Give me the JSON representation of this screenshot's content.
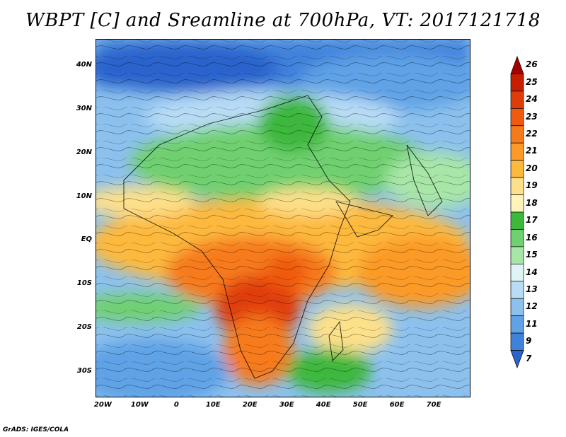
{
  "title": "WBPT [C] and Sreamline at 700hPa, VT: 2017121718",
  "credit": "GrADS: IGES/COLA",
  "map": {
    "lon_range": [
      -22,
      80
    ],
    "lat_range": [
      -36,
      46
    ],
    "lat_labels": [
      {
        "lat": 40,
        "text": "40N"
      },
      {
        "lat": 30,
        "text": "30N"
      },
      {
        "lat": 20,
        "text": "20N"
      },
      {
        "lat": 10,
        "text": "10N"
      },
      {
        "lat": 0,
        "text": "EQ"
      },
      {
        "lat": -10,
        "text": "10S"
      },
      {
        "lat": -20,
        "text": "20S"
      },
      {
        "lat": -30,
        "text": "30S"
      }
    ],
    "lon_labels": [
      {
        "lon": -20,
        "text": "20W"
      },
      {
        "lon": -10,
        "text": "10W"
      },
      {
        "lon": 0,
        "text": "0"
      },
      {
        "lon": 10,
        "text": "10E"
      },
      {
        "lon": 20,
        "text": "20E"
      },
      {
        "lon": 30,
        "text": "30E"
      },
      {
        "lon": 40,
        "text": "40E"
      },
      {
        "lon": 50,
        "text": "50E"
      },
      {
        "lon": 60,
        "text": "60E"
      },
      {
        "lon": 70,
        "text": "70E"
      }
    ]
  },
  "colorbar": {
    "labels": [
      "26",
      "25",
      "24",
      "23",
      "22",
      "21",
      "20",
      "19",
      "18",
      "17",
      "16",
      "15",
      "14",
      "13",
      "12",
      "11",
      "9",
      "7"
    ],
    "colors": [
      "#a50000",
      "#c81e00",
      "#e03c0a",
      "#f05a10",
      "#f77a1a",
      "#fb9a28",
      "#fdb93c",
      "#fde08a",
      "#fff5b8",
      "#3cb83c",
      "#6fd06f",
      "#a8e6a8",
      "#dff5f5",
      "#b8dcf5",
      "#8cc1ee",
      "#5fa2e6",
      "#3f82dc",
      "#2a64cc"
    ]
  }
}
